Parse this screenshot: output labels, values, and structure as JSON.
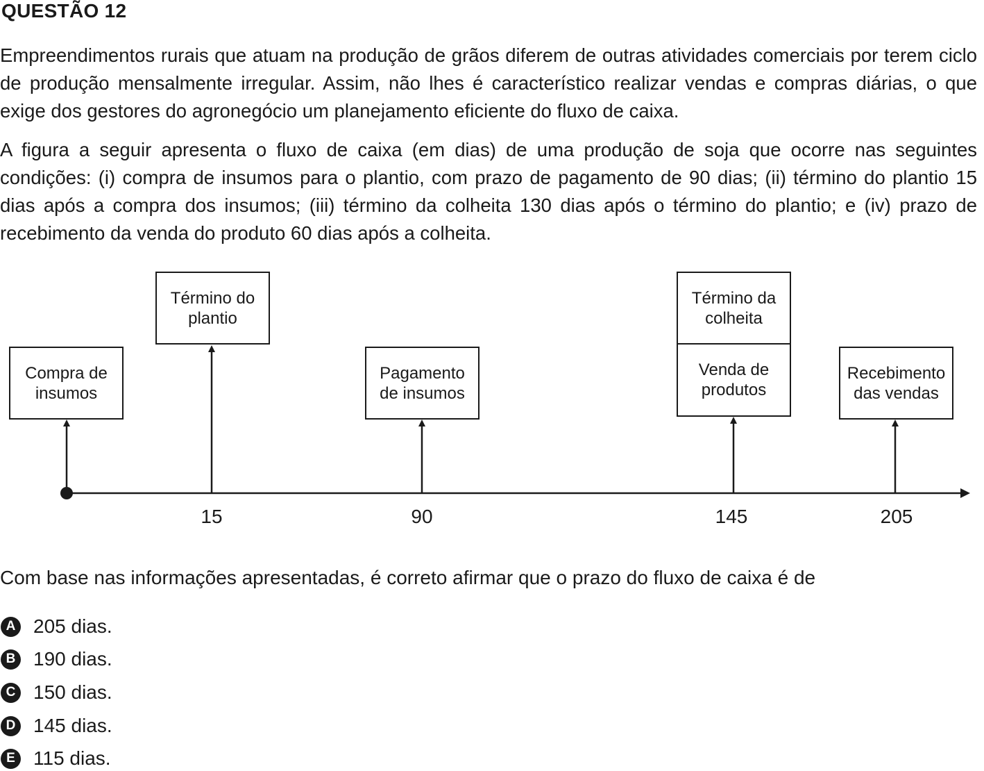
{
  "question": {
    "title": "QUESTÃO 12",
    "paragraph1": "Empreendimentos rurais que atuam na produção de grãos diferem de outras atividades comerciais por terem ciclo de produção mensalmente irregular. Assim, não lhes é característico realizar vendas e compras diárias, o que exige dos gestores do agronegócio um planejamento eficiente do fluxo de caixa.",
    "paragraph2": "A figura a seguir apresenta o fluxo de caixa (em dias) de uma produção de soja que ocorre nas seguintes condições: (i) compra de insumos para o plantio, com prazo de pagamento de 90 dias; (ii) término do plantio 15 dias após a compra dos insumos; (iii) término da colheita 130 dias após o término do plantio; e (iv) prazo de recebimento da venda do produto 60 dias após a colheita.",
    "prompt": "Com base nas informações apresentadas, é correto afirmar que o prazo do fluxo de caixa é de"
  },
  "timeline": {
    "events": [
      {
        "day": 0,
        "tick": "",
        "label": "Compra de insumos"
      },
      {
        "day": 15,
        "tick": "15",
        "label": "Término do plantio"
      },
      {
        "day": 90,
        "tick": "90",
        "label": "Pagamento de insumos"
      },
      {
        "day": 145,
        "tick": "145",
        "label": "Venda de produtos",
        "label_above": "Término da colheita"
      },
      {
        "day": 205,
        "tick": "205",
        "label": "Recebimento das vendas"
      }
    ]
  },
  "options": [
    {
      "letter": "A",
      "text": "205 dias."
    },
    {
      "letter": "B",
      "text": "190 dias."
    },
    {
      "letter": "C",
      "text": "150 dias."
    },
    {
      "letter": "D",
      "text": "145 dias."
    },
    {
      "letter": "E",
      "text": "115 dias."
    }
  ]
}
